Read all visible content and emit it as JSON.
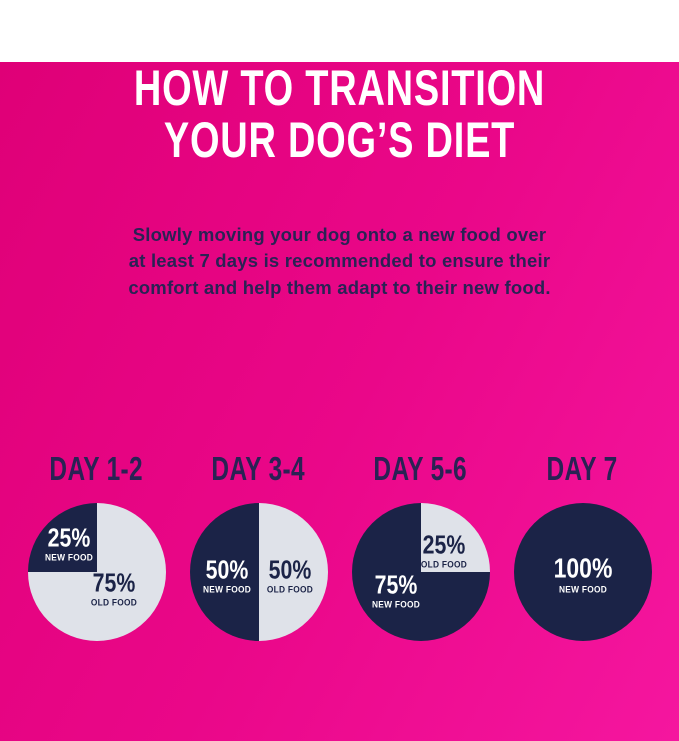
{
  "page": {
    "background_gradient": [
      "#df0077",
      "#ea0789",
      "#f5169f"
    ],
    "colors": {
      "navy": "#1b2347",
      "light_slice": "#dfe2e9",
      "heading_indigo": "#2a2254",
      "title_white": "#ffffff"
    }
  },
  "header": {
    "title_lines": [
      "HOW TO TRANSITION",
      "YOUR DOG’S DIET"
    ]
  },
  "intro": {
    "lines": [
      "Slowly moving your dog onto a new food over",
      "at least 7 days is recommended to ensure their",
      "comfort and help them adapt to their new food."
    ]
  },
  "chart_data": [
    {
      "type": "pie",
      "title": "DAY 1-2",
      "slices": [
        {
          "label": "NEW FOOD",
          "value": 25,
          "display": "25%",
          "color": "#1b2347",
          "text_color": "#ffffff"
        },
        {
          "label": "OLD FOOD",
          "value": 75,
          "display": "75%",
          "color": "#dfe2e9",
          "text_color": "#1b2347"
        }
      ]
    },
    {
      "type": "pie",
      "title": "DAY 3-4",
      "slices": [
        {
          "label": "NEW FOOD",
          "value": 50,
          "display": "50%",
          "color": "#1b2347",
          "text_color": "#ffffff"
        },
        {
          "label": "OLD FOOD",
          "value": 50,
          "display": "50%",
          "color": "#dfe2e9",
          "text_color": "#1b2347"
        }
      ]
    },
    {
      "type": "pie",
      "title": "DAY 5-6",
      "slices": [
        {
          "label": "NEW FOOD",
          "value": 75,
          "display": "75%",
          "color": "#1b2347",
          "text_color": "#ffffff"
        },
        {
          "label": "OLD FOOD",
          "value": 25,
          "display": "25%",
          "color": "#dfe2e9",
          "text_color": "#1b2347"
        }
      ]
    },
    {
      "type": "pie",
      "title": "DAY 7",
      "slices": [
        {
          "label": "NEW FOOD",
          "value": 100,
          "display": "100%",
          "color": "#1b2347",
          "text_color": "#ffffff"
        }
      ]
    }
  ]
}
